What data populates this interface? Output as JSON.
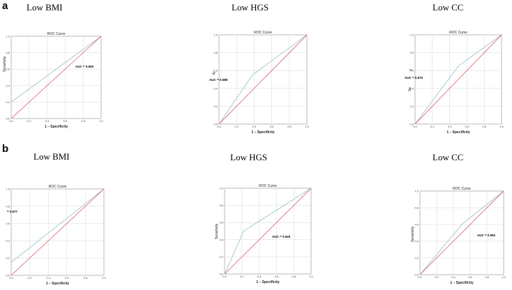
{
  "panel_labels": {
    "a": "a",
    "b": "b"
  },
  "chart_data": [
    {
      "type": "line",
      "title": "ROC Curve",
      "group_title": "Low BMI",
      "xlabel": "1 – Specificity",
      "ylabel": "Sensitivity",
      "xlim": [
        0,
        1
      ],
      "ylim": [
        0,
        1
      ],
      "grid": true,
      "x_ticks": [
        "0.0",
        "0.2",
        "0.4",
        "0.6",
        "0.8",
        "1.0"
      ],
      "y_ticks": [
        "0.0",
        "0.2",
        "0.4",
        "0.6",
        "0.8",
        "1.0"
      ],
      "annotation": "AUC = 0.593",
      "series": [
        {
          "values": [
            [
              0,
              0
            ],
            [
              0,
              0.2
            ],
            [
              1,
              1
            ]
          ],
          "color": "#9dc6c6"
        },
        {
          "values": [
            [
              0,
              0
            ],
            [
              1,
              1
            ]
          ],
          "color": "#e0727a"
        }
      ]
    },
    {
      "type": "line",
      "title": "ROC Curve",
      "group_title": "Low HGS",
      "xlabel": "1 – Specificity",
      "ylabel": "ity",
      "xlim": [
        0,
        1
      ],
      "ylim": [
        0,
        1
      ],
      "grid": true,
      "x_ticks": [
        "0.0",
        "0.2",
        "0.4",
        "0.6",
        "0.8",
        "1.0"
      ],
      "y_ticks": [
        "0.0",
        "0.2",
        "0.4",
        "0.6",
        "0.8",
        "1.0"
      ],
      "annotation": "AUC = 0.588",
      "series": [
        {
          "values": [
            [
              0,
              0
            ],
            [
              0.38,
              0.55
            ],
            [
              1,
              1
            ]
          ],
          "color": "#9dc6c6"
        },
        {
          "values": [
            [
              0,
              0
            ],
            [
              1,
              1
            ]
          ],
          "color": "#e0727a"
        }
      ]
    },
    {
      "type": "line",
      "title": "ROC Curve",
      "group_title": "Low CC",
      "xlabel": "1 – Specificity",
      "ylabel": "Se",
      "ylabel_extra": "y",
      "xlim": [
        0,
        1
      ],
      "ylim": [
        0,
        1
      ],
      "grid": true,
      "x_ticks": [
        "0.0",
        "0.2",
        "0.4",
        "0.6",
        "0.8",
        "1.0"
      ],
      "y_ticks": [
        "0.0",
        "0.2",
        "0.4",
        "0.6",
        "0.8",
        "1.0"
      ],
      "annotation": "AUC = 0.570",
      "series": [
        {
          "values": [
            [
              0,
              0
            ],
            [
              0.5,
              0.65
            ],
            [
              1,
              1
            ]
          ],
          "color": "#9dc6c6"
        },
        {
          "values": [
            [
              0,
              0
            ],
            [
              1,
              1
            ]
          ],
          "color": "#e0727a"
        }
      ]
    },
    {
      "type": "line",
      "title": "ROC Curve",
      "group_title": "Low BMI",
      "xlabel": "1 – Specificity",
      "ylabel": "",
      "xlim": [
        0,
        1
      ],
      "ylim": [
        0,
        1
      ],
      "grid": true,
      "x_ticks": [
        "0.0",
        "0.2",
        "0.4",
        "0.6",
        "0.8",
        "1.0"
      ],
      "y_ticks": [
        "0.0",
        "0.2",
        "0.4",
        "0.6",
        "0.8",
        "1.0"
      ],
      "annotation": "= 0.577",
      "series": [
        {
          "values": [
            [
              0,
              0
            ],
            [
              0,
              0.15
            ],
            [
              1,
              1
            ]
          ],
          "color": "#9dc6c6"
        },
        {
          "values": [
            [
              0,
              0
            ],
            [
              1,
              1
            ]
          ],
          "color": "#e0727a"
        }
      ]
    },
    {
      "type": "line",
      "title": "ROC Curve",
      "group_title": "Low HGS",
      "xlabel": "1 – Specificity",
      "ylabel": "Sensitivity",
      "xlim": [
        0,
        1
      ],
      "ylim": [
        0,
        1
      ],
      "grid": true,
      "x_ticks": [
        "0.0",
        "0.2",
        "0.4",
        "0.6",
        "0.8",
        "1.0"
      ],
      "y_ticks": [
        "0.0",
        "0.2",
        "0.4",
        "0.6",
        "0.8",
        "1.0"
      ],
      "annotation": "AUC = 0.645",
      "series": [
        {
          "values": [
            [
              0,
              0
            ],
            [
              0.22,
              0.5
            ],
            [
              1,
              1
            ]
          ],
          "color": "#9dc6c6"
        },
        {
          "values": [
            [
              0,
              0
            ],
            [
              1,
              1
            ]
          ],
          "color": "#e0727a"
        }
      ]
    },
    {
      "type": "line",
      "title": "ROC Curve",
      "group_title": "Low CC",
      "xlabel": "1 – Specificity",
      "ylabel": "Sensitivity",
      "xlim": [
        0,
        1
      ],
      "ylim": [
        0,
        1
      ],
      "grid": true,
      "x_ticks": [
        "0.0",
        "0.2",
        "0.4",
        "0.6",
        "0.8",
        "1.0"
      ],
      "y_ticks": [
        "0.0",
        "0.2",
        "0.4",
        "0.6",
        "0.8",
        "1.0"
      ],
      "annotation": "AUC = 0.552",
      "series": [
        {
          "values": [
            [
              0,
              0
            ],
            [
              0.5,
              0.6
            ],
            [
              1,
              1
            ]
          ],
          "color": "#9dc6c6"
        },
        {
          "values": [
            [
              0,
              0
            ],
            [
              1,
              1
            ]
          ],
          "color": "#e0727a"
        }
      ]
    }
  ]
}
